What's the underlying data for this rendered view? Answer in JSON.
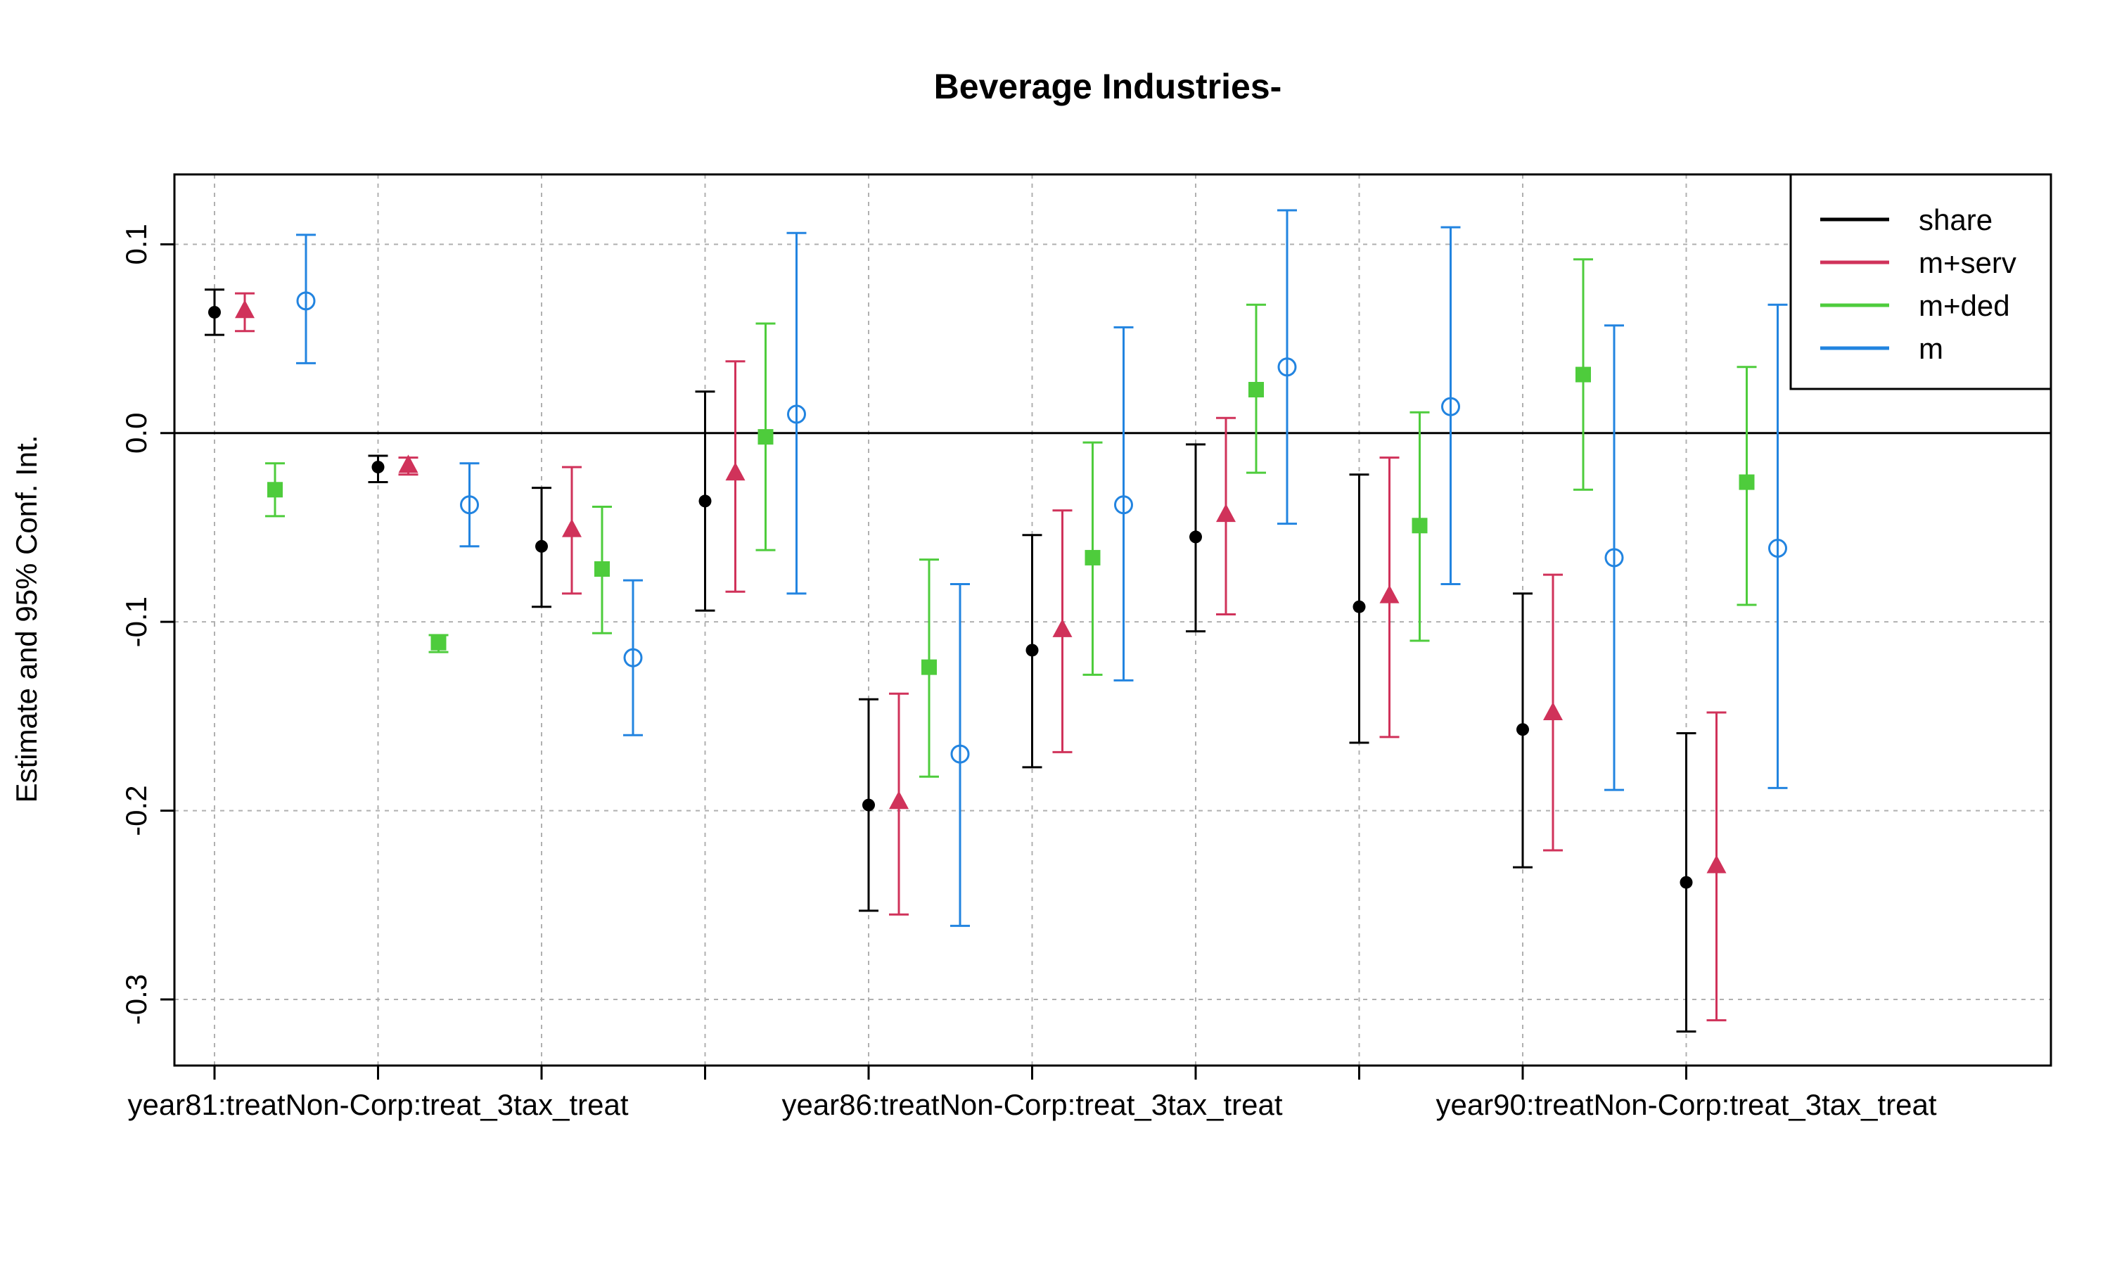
{
  "chart_data": {
    "type": "scatter",
    "plot_style": "coefficient plot with 95% confidence interval error bars",
    "title": "Beverage Industries-",
    "xlabel": "",
    "ylabel": "Estimate and 95% Conf. Int.",
    "ylim": [
      -0.335,
      0.137
    ],
    "y_ticks": [
      "0.1",
      "0.0",
      "-0.1",
      "-0.2",
      "-0.3"
    ],
    "y_tick_values": [
      0.1,
      0.0,
      -0.1,
      -0.2,
      -0.3
    ],
    "x_tick_labels": [
      "year81:treatNon-Corp:treat_3tax_treat",
      "year86:treatNon-Corp:treat_3tax_treat",
      "year90:treatNon-Corp:treat_3tax_treat"
    ],
    "groups": 10,
    "reference_line": 0,
    "grid": true,
    "legend_position": "top-right",
    "series": [
      {
        "name": "share",
        "color": "#000000",
        "marker": "dot",
        "estimate": [
          0.064,
          -0.018,
          -0.06,
          -0.036,
          -0.197,
          -0.115,
          -0.055,
          -0.092,
          -0.157,
          -0.238
        ],
        "lower": [
          0.052,
          -0.026,
          -0.092,
          -0.094,
          -0.253,
          -0.177,
          -0.105,
          -0.164,
          -0.23,
          -0.317
        ],
        "upper": [
          0.076,
          -0.012,
          -0.029,
          0.022,
          -0.141,
          -0.054,
          -0.006,
          -0.022,
          -0.085,
          -0.159
        ]
      },
      {
        "name": "m+serv",
        "color": "#d0325a",
        "marker": "triangle",
        "estimate": [
          0.065,
          -0.017,
          -0.051,
          -0.021,
          -0.195,
          -0.104,
          -0.043,
          -0.086,
          -0.148,
          -0.229
        ],
        "lower": [
          0.054,
          -0.022,
          -0.085,
          -0.084,
          -0.255,
          -0.169,
          -0.096,
          -0.161,
          -0.221,
          -0.311
        ],
        "upper": [
          0.074,
          -0.013,
          -0.018,
          0.038,
          -0.138,
          -0.041,
          0.008,
          -0.013,
          -0.075,
          -0.148
        ]
      },
      {
        "name": "m+ded",
        "color": "#4ecc3c",
        "marker": "square",
        "estimate": [
          -0.03,
          -0.111,
          -0.072,
          -0.002,
          -0.124,
          -0.066,
          0.023,
          -0.049,
          0.031,
          -0.026
        ],
        "lower": [
          -0.044,
          -0.116,
          -0.106,
          -0.062,
          -0.182,
          -0.128,
          -0.021,
          -0.11,
          -0.03,
          -0.091
        ],
        "upper": [
          -0.016,
          -0.107,
          -0.039,
          0.058,
          -0.067,
          -0.005,
          0.068,
          0.011,
          0.092,
          0.035
        ]
      },
      {
        "name": "m",
        "color": "#2284e0",
        "marker": "circle",
        "estimate": [
          0.07,
          -0.038,
          -0.119,
          0.01,
          -0.17,
          -0.038,
          0.035,
          0.014,
          -0.066,
          -0.061
        ],
        "lower": [
          0.037,
          -0.06,
          -0.16,
          -0.085,
          -0.261,
          -0.131,
          -0.048,
          -0.08,
          -0.189,
          -0.188
        ],
        "upper": [
          0.105,
          -0.016,
          -0.078,
          0.106,
          -0.08,
          0.056,
          0.118,
          0.109,
          0.057,
          0.068
        ]
      }
    ]
  }
}
